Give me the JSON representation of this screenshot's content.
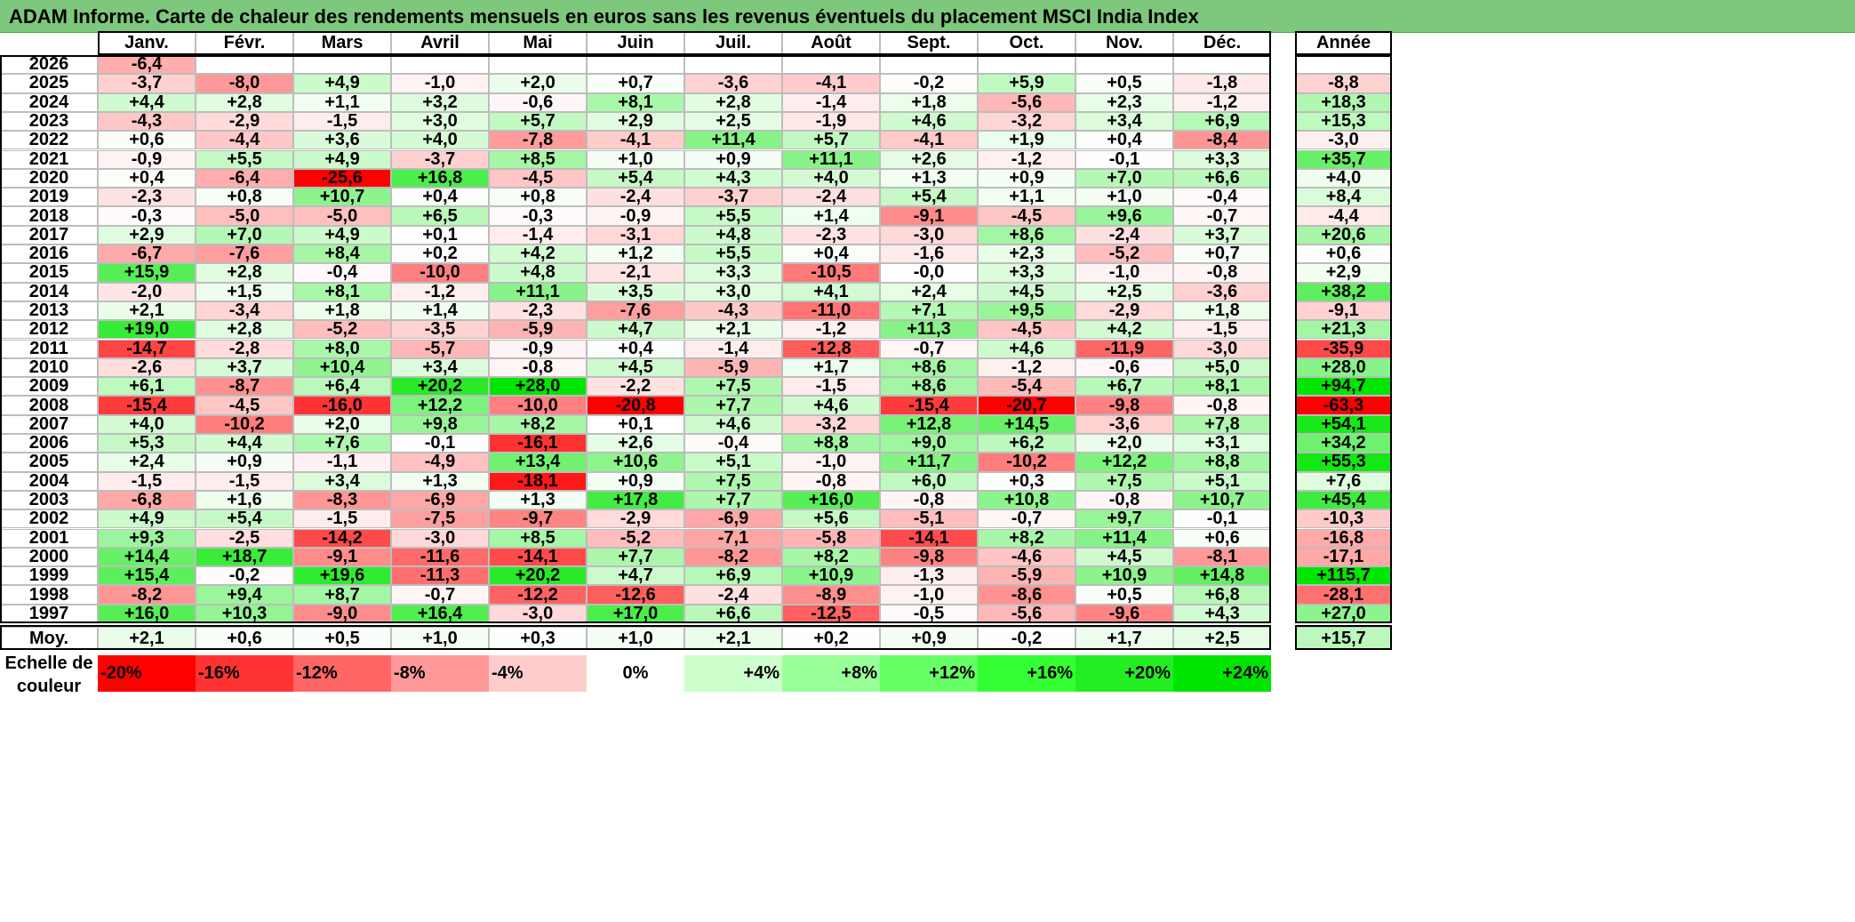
{
  "title": "ADAM Informe. Carte de chaleur des rendements mensuels en euros sans les revenus éventuels du placement MSCI India Index",
  "chart_data": {
    "type": "heatmap",
    "columns": [
      "Janv.",
      "Févr.",
      "Mars",
      "Avril",
      "Mai",
      "Juin",
      "Juil.",
      "Août",
      "Sept.",
      "Oct.",
      "Nov.",
      "Déc."
    ],
    "annual_header": "Année",
    "rows": [
      {
        "year": "2026",
        "values": [
          "-6,4",
          "",
          "",
          "",
          "",
          "",
          "",
          "",
          "",
          "",
          "",
          ""
        ],
        "annual": ""
      },
      {
        "year": "2025",
        "values": [
          "-3,7",
          "-8,0",
          "+4,9",
          "-1,0",
          "+2,0",
          "+0,7",
          "-3,6",
          "-4,1",
          "-0,2",
          "+5,9",
          "+0,5",
          "-1,8"
        ],
        "annual": "-8,8"
      },
      {
        "year": "2024",
        "values": [
          "+4,4",
          "+2,8",
          "+1,1",
          "+3,2",
          "-0,6",
          "+8,1",
          "+2,8",
          "-1,4",
          "+1,8",
          "-5,6",
          "+2,3",
          "-1,2"
        ],
        "annual": "+18,3"
      },
      {
        "year": "2023",
        "values": [
          "-4,3",
          "-2,9",
          "-1,5",
          "+3,0",
          "+5,7",
          "+2,9",
          "+2,5",
          "-1,9",
          "+4,6",
          "-3,2",
          "+3,4",
          "+6,9"
        ],
        "annual": "+15,3"
      },
      {
        "year": "2022",
        "values": [
          "+0,6",
          "-4,4",
          "+3,6",
          "+4,0",
          "-7,8",
          "-4,1",
          "+11,4",
          "+5,7",
          "-4,1",
          "+1,9",
          "+0,4",
          "-8,4"
        ],
        "annual": "-3,0"
      },
      {
        "year": "2021",
        "values": [
          "-0,9",
          "+5,5",
          "+4,9",
          "-3,7",
          "+8,5",
          "+1,0",
          "+0,9",
          "+11,1",
          "+2,6",
          "-1,2",
          "-0,1",
          "+3,3"
        ],
        "annual": "+35,7"
      },
      {
        "year": "2020",
        "values": [
          "+0,4",
          "-6,4",
          "-25,6",
          "+16,8",
          "-4,5",
          "+5,4",
          "+4,3",
          "+4,0",
          "+1,3",
          "+0,9",
          "+7,0",
          "+6,6"
        ],
        "annual": "+4,0"
      },
      {
        "year": "2019",
        "values": [
          "-2,3",
          "+0,8",
          "+10,7",
          "+0,4",
          "+0,8",
          "-2,4",
          "-3,7",
          "-2,4",
          "+5,4",
          "+1,1",
          "+1,0",
          "-0,4"
        ],
        "annual": "+8,4"
      },
      {
        "year": "2018",
        "values": [
          "-0,3",
          "-5,0",
          "-5,0",
          "+6,5",
          "-0,3",
          "-0,9",
          "+5,5",
          "+1,4",
          "-9,1",
          "-4,5",
          "+9,6",
          "-0,7"
        ],
        "annual": "-4,4"
      },
      {
        "year": "2017",
        "values": [
          "+2,9",
          "+7,0",
          "+4,9",
          "+0,1",
          "-1,4",
          "-3,1",
          "+4,8",
          "-2,3",
          "-3,0",
          "+8,6",
          "-2,4",
          "+3,7"
        ],
        "annual": "+20,6"
      },
      {
        "year": "2016",
        "values": [
          "-6,7",
          "-7,6",
          "+8,4",
          "+0,2",
          "+4,2",
          "+1,2",
          "+5,5",
          "+0,4",
          "-1,6",
          "+2,3",
          "-5,2",
          "+0,7"
        ],
        "annual": "+0,6"
      },
      {
        "year": "2015",
        "values": [
          "+15,9",
          "+2,8",
          "-0,4",
          "-10,0",
          "+4,8",
          "-2,1",
          "+3,3",
          "-10,5",
          "-0,0",
          "+3,3",
          "-1,0",
          "-0,8"
        ],
        "annual": "+2,9"
      },
      {
        "year": "2014",
        "values": [
          "-2,0",
          "+1,5",
          "+8,1",
          "-1,2",
          "+11,1",
          "+3,5",
          "+3,0",
          "+4,1",
          "+2,4",
          "+4,5",
          "+2,5",
          "-3,6"
        ],
        "annual": "+38,2"
      },
      {
        "year": "2013",
        "values": [
          "+2,1",
          "-3,4",
          "+1,8",
          "+1,4",
          "-2,3",
          "-7,6",
          "-4,3",
          "-11,0",
          "+7,1",
          "+9,5",
          "-2,9",
          "+1,8"
        ],
        "annual": "-9,1"
      },
      {
        "year": "2012",
        "values": [
          "+19,0",
          "+2,8",
          "-5,2",
          "-3,5",
          "-5,9",
          "+4,7",
          "+2,1",
          "-1,2",
          "+11,3",
          "-4,5",
          "+4,2",
          "-1,5"
        ],
        "annual": "+21,3"
      },
      {
        "year": "2011",
        "values": [
          "-14,7",
          "-2,8",
          "+8,0",
          "-5,7",
          "-0,9",
          "+0,4",
          "-1,4",
          "-12,8",
          "-0,7",
          "+4,6",
          "-11,9",
          "-3,0"
        ],
        "annual": "-35,9"
      },
      {
        "year": "2010",
        "values": [
          "-2,6",
          "+3,7",
          "+10,4",
          "+3,4",
          "-0,8",
          "+4,5",
          "-5,9",
          "+1,7",
          "+8,6",
          "-1,2",
          "-0,6",
          "+5,0"
        ],
        "annual": "+28,0"
      },
      {
        "year": "2009",
        "values": [
          "+6,1",
          "-8,7",
          "+6,4",
          "+20,2",
          "+28,0",
          "-2,2",
          "+7,5",
          "-1,5",
          "+8,6",
          "-5,4",
          "+6,7",
          "+8,1"
        ],
        "annual": "+94,7"
      },
      {
        "year": "2008",
        "values": [
          "-15,4",
          "-4,5",
          "-16,0",
          "+12,2",
          "-10,0",
          "-20,8",
          "+7,7",
          "+4,6",
          "-15,4",
          "-20,7",
          "-9,8",
          "-0,8"
        ],
        "annual": "-63,3"
      },
      {
        "year": "2007",
        "values": [
          "+4,0",
          "-10,2",
          "+2,0",
          "+9,8",
          "+8,2",
          "+0,1",
          "+4,6",
          "-3,2",
          "+12,8",
          "+14,5",
          "-3,6",
          "+7,8"
        ],
        "annual": "+54,1"
      },
      {
        "year": "2006",
        "values": [
          "+5,3",
          "+4,4",
          "+7,6",
          "-0,1",
          "-16,1",
          "+2,6",
          "-0,4",
          "+8,8",
          "+9,0",
          "+6,2",
          "+2,0",
          "+3,1"
        ],
        "annual": "+34,2"
      },
      {
        "year": "2005",
        "values": [
          "+2,4",
          "+0,9",
          "-1,1",
          "-4,9",
          "+13,4",
          "+10,6",
          "+5,1",
          "-1,0",
          "+11,7",
          "-10,2",
          "+12,2",
          "+8,8"
        ],
        "annual": "+55,3"
      },
      {
        "year": "2004",
        "values": [
          "-1,5",
          "-1,5",
          "+3,4",
          "+1,3",
          "-18,1",
          "+0,9",
          "+7,5",
          "-0,8",
          "+6,0",
          "+0,3",
          "+7,5",
          "+5,1"
        ],
        "annual": "+7,6"
      },
      {
        "year": "2003",
        "values": [
          "-6,8",
          "+1,6",
          "-8,3",
          "-6,9",
          "+1,3",
          "+17,8",
          "+7,7",
          "+16,0",
          "-0,8",
          "+10,8",
          "-0,8",
          "+10,7"
        ],
        "annual": "+45,4"
      },
      {
        "year": "2002",
        "values": [
          "+4,9",
          "+5,4",
          "-1,5",
          "-7,5",
          "-9,7",
          "-2,9",
          "-6,9",
          "+5,6",
          "-5,1",
          "-0,7",
          "+9,7",
          "-0,1"
        ],
        "annual": "-10,3"
      },
      {
        "year": "2001",
        "values": [
          "+9,3",
          "-2,5",
          "-14,2",
          "-3,0",
          "+8,5",
          "-5,2",
          "-7,1",
          "-5,8",
          "-14,1",
          "+8,2",
          "+11,4",
          "+0,6"
        ],
        "annual": "-16,8"
      },
      {
        "year": "2000",
        "values": [
          "+14,4",
          "+18,7",
          "-9,1",
          "-11,6",
          "-14,1",
          "+7,7",
          "-8,2",
          "+8,2",
          "-9,8",
          "-4,6",
          "+4,5",
          "-8,1"
        ],
        "annual": "-17,1"
      },
      {
        "year": "1999",
        "values": [
          "+15,4",
          "-0,2",
          "+19,6",
          "-11,3",
          "+20,2",
          "+4,7",
          "+6,9",
          "+10,9",
          "-1,3",
          "-5,9",
          "+10,9",
          "+14,8"
        ],
        "annual": "+115,7"
      },
      {
        "year": "1998",
        "values": [
          "-8,2",
          "+9,4",
          "+8,7",
          "-0,7",
          "-12,2",
          "-12,6",
          "-2,4",
          "-8,9",
          "-1,0",
          "-8,6",
          "+0,5",
          "+6,8"
        ],
        "annual": "-28,1"
      },
      {
        "year": "1997",
        "values": [
          "+16,0",
          "+10,3",
          "-9,0",
          "+16,4",
          "-3,0",
          "+17,0",
          "+6,6",
          "-12,5",
          "-0,5",
          "-5,6",
          "-9,6",
          "+4,3"
        ],
        "annual": "+27,0"
      }
    ],
    "average": {
      "label": "Moy.",
      "values": [
        "+2,1",
        "+0,6",
        "+0,5",
        "+1,0",
        "+0,3",
        "+1,0",
        "+2,1",
        "+0,2",
        "+0,9",
        "-0,2",
        "+1,7",
        "+2,5"
      ],
      "annual": "+15,7"
    },
    "scale": {
      "label_line1": "Echelle de",
      "label_line2": "couleur",
      "stops": [
        {
          "label": "-20%",
          "value": -20,
          "color": "#ff0000"
        },
        {
          "label": "-16%",
          "value": -16,
          "color": "#ff3333"
        },
        {
          "label": "-12%",
          "value": -12,
          "color": "#ff6666"
        },
        {
          "label": "-8%",
          "value": -8,
          "color": "#ff9999"
        },
        {
          "label": "-4%",
          "value": -4,
          "color": "#ffcccc"
        },
        {
          "label": "0%",
          "value": 0,
          "color": "#ffffff"
        },
        {
          "label": "+4%",
          "value": 4,
          "color": "#ccffcc"
        },
        {
          "label": "+8%",
          "value": 8,
          "color": "#99ff99"
        },
        {
          "label": "+12%",
          "value": 12,
          "color": "#66ff66"
        },
        {
          "label": "+16%",
          "value": 16,
          "color": "#33ff33"
        },
        {
          "label": "+20%",
          "value": 20,
          "color": "#22ee22"
        },
        {
          "label": "+24%",
          "value": 24,
          "color": "#00e600"
        }
      ]
    }
  }
}
